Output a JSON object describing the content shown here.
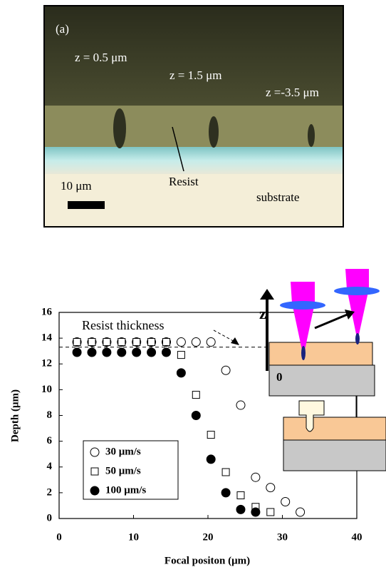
{
  "micrograph": {
    "panel_label": "(a)",
    "depth_labels": [
      "z = 0.5 μm",
      "z = 1.5 μm",
      "z =-3.5 μm"
    ],
    "scale_label": "10 μm",
    "resist_label": "Resist",
    "substrate_label": "substrate"
  },
  "schematic": {
    "axis_label": "z",
    "origin_label": "0"
  },
  "chart_data": {
    "type": "scatter",
    "xlabel": "Focal positon (μm)",
    "ylabel": "Depth (μm)",
    "xlim": [
      0,
      40
    ],
    "ylim": [
      0,
      16
    ],
    "xticks": [
      0,
      10,
      20,
      30,
      40
    ],
    "yticks": [
      0,
      2,
      4,
      6,
      8,
      10,
      12,
      14,
      16
    ],
    "annotation": "Resist thickness",
    "reference_line": 13.3,
    "series": [
      {
        "name": "30 μm/s",
        "marker": "circle-open",
        "color": "#000000",
        "x": [
          2.4,
          4.4,
          6.4,
          8.4,
          10.4,
          12.4,
          14.4,
          16.4,
          18.4,
          20.4,
          22.4,
          24.4,
          26.4,
          28.4,
          30.4,
          32.4
        ],
        "values": [
          13.7,
          13.7,
          13.7,
          13.7,
          13.7,
          13.7,
          13.7,
          13.7,
          13.7,
          13.7,
          11.5,
          8.8,
          3.2,
          2.4,
          1.3,
          0.5
        ]
      },
      {
        "name": "50 μm/s",
        "marker": "square-open",
        "color": "#000000",
        "x": [
          2.4,
          4.4,
          6.4,
          8.4,
          10.4,
          12.4,
          14.4,
          16.4,
          18.4,
          20.4,
          22.4,
          24.4,
          26.4,
          28.4
        ],
        "values": [
          13.7,
          13.7,
          13.7,
          13.7,
          13.7,
          13.7,
          13.7,
          12.7,
          9.6,
          6.5,
          3.6,
          1.8,
          0.9,
          0.5
        ]
      },
      {
        "name": "100 μm/s",
        "marker": "circle-filled",
        "color": "#000000",
        "x": [
          2.4,
          4.4,
          6.4,
          8.4,
          10.4,
          12.4,
          14.4,
          16.4,
          18.4,
          20.4,
          22.4,
          24.4,
          26.4
        ],
        "values": [
          12.9,
          12.9,
          12.9,
          12.9,
          12.9,
          12.9,
          12.9,
          11.3,
          8.0,
          4.6,
          2.0,
          0.7,
          0.5
        ]
      }
    ]
  }
}
